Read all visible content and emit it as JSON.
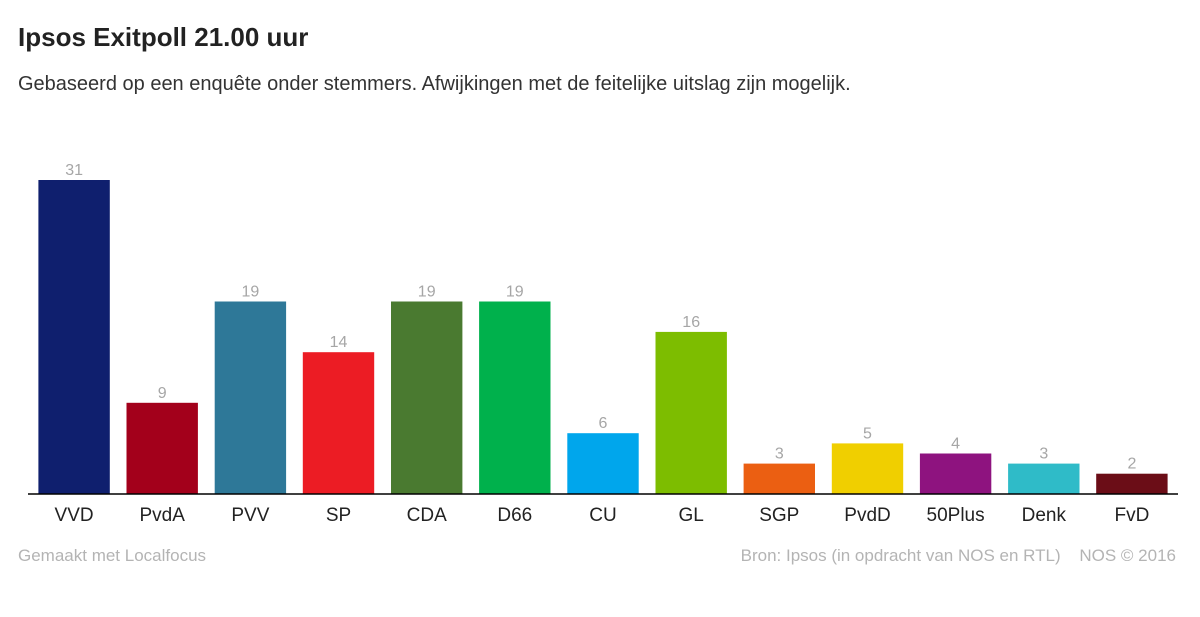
{
  "header": {
    "title": "Ipsos Exitpoll 21.00 uur",
    "subtitle": "Gebaseerd op een enquête onder stemmers. Afwijkingen met de feitelijke uitslag zijn mogelijk."
  },
  "footer": {
    "credit": "Gemaakt met Localfocus",
    "source": "Bron: Ipsos (in opdracht van NOS en RTL)",
    "copyright": "NOS © 2016"
  },
  "chart_data": {
    "type": "bar",
    "title": "Ipsos Exitpoll 21.00 uur",
    "subtitle": "Gebaseerd op een enquête onder stemmers. Afwijkingen met de feitelijke uitslag zijn mogelijk.",
    "categories": [
      "VVD",
      "PvdA",
      "PVV",
      "SP",
      "CDA",
      "D66",
      "CU",
      "GL",
      "SGP",
      "PvdD",
      "50Plus",
      "Denk",
      "FvD"
    ],
    "values": [
      31,
      9,
      19,
      14,
      19,
      19,
      6,
      16,
      3,
      5,
      4,
      3,
      2
    ],
    "colors": [
      "#0f1f6e",
      "#a3001b",
      "#2e7898",
      "#ec1c24",
      "#4a7a30",
      "#00b14c",
      "#00a6ec",
      "#7dbd00",
      "#eb5f12",
      "#f0cf00",
      "#8e137f",
      "#2fbbc8",
      "#6b0d17"
    ],
    "data_labels": true,
    "grid": false,
    "legend": "none",
    "ylim": [
      0,
      31
    ]
  }
}
